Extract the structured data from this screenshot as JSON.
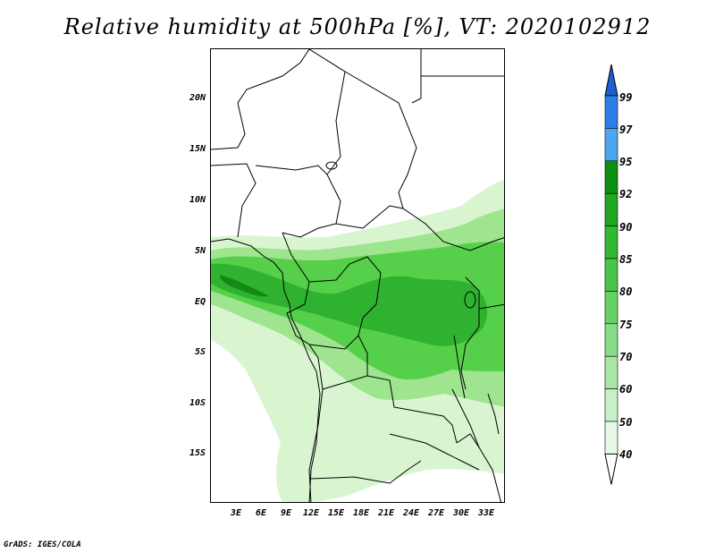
{
  "title": "Relative humidity at 500hPa [%], VT: 2020102912",
  "credit": "GrADS: IGES/COLA",
  "map": {
    "lat_ticks": [
      "20N",
      "15N",
      "10N",
      "5N",
      "EQ",
      "5S",
      "10S",
      "15S"
    ],
    "lon_ticks": [
      "3E",
      "6E",
      "9E",
      "12E",
      "15E",
      "18E",
      "21E",
      "24E",
      "27E",
      "30E",
      "33E"
    ],
    "field": "Relative humidity (%)",
    "region_colors": {
      "light": "#d8f5d0",
      "mid": "#9fe48f",
      "high": "#56d04a",
      "very_high": "#2fb22f",
      "peak": "#148a14"
    }
  },
  "colorbar": {
    "levels": [
      "99",
      "97",
      "95",
      "92",
      "90",
      "85",
      "80",
      "75",
      "70",
      "60",
      "50",
      "40"
    ],
    "colors": [
      "#1e5fd0",
      "#2c7ee6",
      "#4ea6f0",
      "#0f8f0f",
      "#21a621",
      "#33b833",
      "#49c649",
      "#66d266",
      "#88dc88",
      "#a8e6a8",
      "#c8f0c8",
      "#e6f9e6",
      "#ffffff"
    ]
  }
}
